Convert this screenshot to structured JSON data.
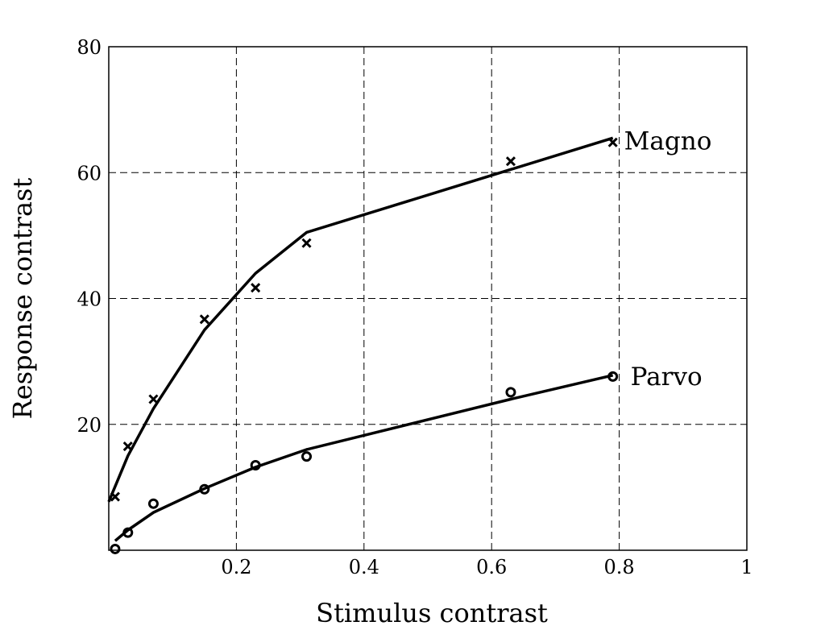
{
  "chart_data": {
    "type": "line",
    "title": "",
    "xlabel": "Stimulus contrast",
    "ylabel": "Response contrast",
    "xlim": [
      0.0,
      1.0
    ],
    "ylim": [
      0,
      80
    ],
    "xticks": [
      0.2,
      0.4,
      0.6,
      0.8,
      1.0
    ],
    "xtick_labels": [
      "0.2",
      "0.4",
      "0.6",
      "0.8",
      "1"
    ],
    "yticks": [
      20,
      40,
      60,
      80
    ],
    "ytick_labels": [
      "20",
      "40",
      "60",
      "80"
    ],
    "grid": true,
    "series": [
      {
        "name": "Magno",
        "marker": "x",
        "points": {
          "x": [
            0.01,
            0.03,
            0.07,
            0.15,
            0.23,
            0.31,
            0.63,
            0.79
          ],
          "y": [
            8.5,
            16.5,
            24,
            36.7,
            41.7,
            48.8,
            61.8,
            64.8
          ]
        },
        "fit": {
          "x": [
            0.0,
            0.03,
            0.07,
            0.15,
            0.23,
            0.31,
            0.63,
            0.79
          ],
          "y": [
            7.7,
            15.0,
            22.5,
            35.0,
            44.0,
            50.5,
            60.5,
            65.5
          ]
        }
      },
      {
        "name": "Parvo",
        "marker": "o",
        "points": {
          "x": [
            0.01,
            0.03,
            0.07,
            0.15,
            0.23,
            0.31,
            0.63,
            0.79
          ],
          "y": [
            0.2,
            2.8,
            7.4,
            9.7,
            13.5,
            14.9,
            25.1,
            27.6
          ]
        },
        "fit": {
          "x": [
            0.01,
            0.03,
            0.07,
            0.15,
            0.23,
            0.31,
            0.63,
            0.79
          ],
          "y": [
            1.5,
            3.2,
            6.0,
            9.8,
            13.2,
            16.0,
            24.0,
            27.8
          ]
        }
      }
    ]
  }
}
